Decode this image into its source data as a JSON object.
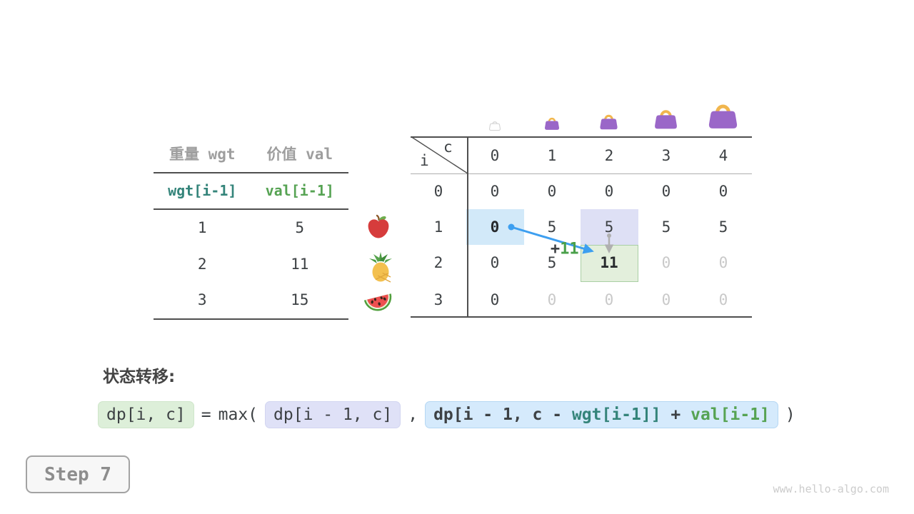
{
  "items_table": {
    "col_headers": [
      "重量 wgt",
      "价值 val"
    ],
    "code_row": [
      "wgt[i-1]",
      "val[i-1]"
    ],
    "rows": [
      [
        "1",
        "5"
      ],
      [
        "2",
        "11"
      ],
      [
        "3",
        "15"
      ]
    ]
  },
  "fruits": [
    {
      "icon": "apple-icon"
    },
    {
      "icon": "pineapple-icon"
    },
    {
      "icon": "watermelon-icon"
    }
  ],
  "bags": [
    {
      "col": "0",
      "icon": "handbag-ghost-icon"
    },
    {
      "col": "1",
      "icon": "handbag-icon"
    },
    {
      "col": "2",
      "icon": "handbag-icon"
    },
    {
      "col": "3",
      "icon": "handbag-icon"
    },
    {
      "col": "4",
      "icon": "handbag-icon"
    }
  ],
  "dp_table": {
    "corner": {
      "col_var": "c",
      "row_var": "i"
    },
    "col_headers": [
      "0",
      "1",
      "2",
      "3",
      "4"
    ],
    "row_headers": [
      "0",
      "1",
      "2",
      "3"
    ],
    "cells": [
      [
        "0",
        "0",
        "0",
        "0",
        "0"
      ],
      [
        "0",
        "5",
        "5",
        "5",
        "5"
      ],
      [
        "0",
        "5",
        "11",
        "0",
        "0"
      ],
      [
        "0",
        "0",
        "0",
        "0",
        "0"
      ]
    ],
    "cell_styles": [
      [
        "d",
        "d",
        "d",
        "d",
        "d"
      ],
      [
        "b",
        "d",
        "d",
        "d",
        "d"
      ],
      [
        "d",
        "d",
        "b",
        "g",
        "g"
      ],
      [
        "d",
        "g",
        "g",
        "g",
        "g"
      ]
    ],
    "highlights": [
      {
        "row": 1,
        "col": 0,
        "type": "blue"
      },
      {
        "row": 1,
        "col": 2,
        "type": "lavender"
      },
      {
        "row": 2,
        "col": 2,
        "type": "green"
      }
    ],
    "transfer": {
      "plus": "+",
      "value": "11"
    }
  },
  "formula": {
    "label": "状态转移:",
    "result": "dp[i, c]",
    "eq": "=",
    "max_open": "max(",
    "arg1": "dp[i - 1, c]",
    "comma": ",",
    "arg2": {
      "prefix": "dp[i - 1, c - ",
      "wgt": "wgt[i-1]]",
      "plus": " + ",
      "val": "val[i-1]"
    },
    "close": ")"
  },
  "step": {
    "label": "Step 7"
  },
  "watermark": "www.hello-algo.com",
  "colors": {
    "accent_blue": "#3d9ff0",
    "teal": "#34847a",
    "green": "#56a353",
    "transfer_green": "#4aa04a",
    "bag_purple": "#9a67c8",
    "bag_handle": "#f1b64e",
    "highlight_blue": "#d2e9f9",
    "highlight_lavender": "#dee0f5",
    "highlight_green": "#e3efdc"
  }
}
